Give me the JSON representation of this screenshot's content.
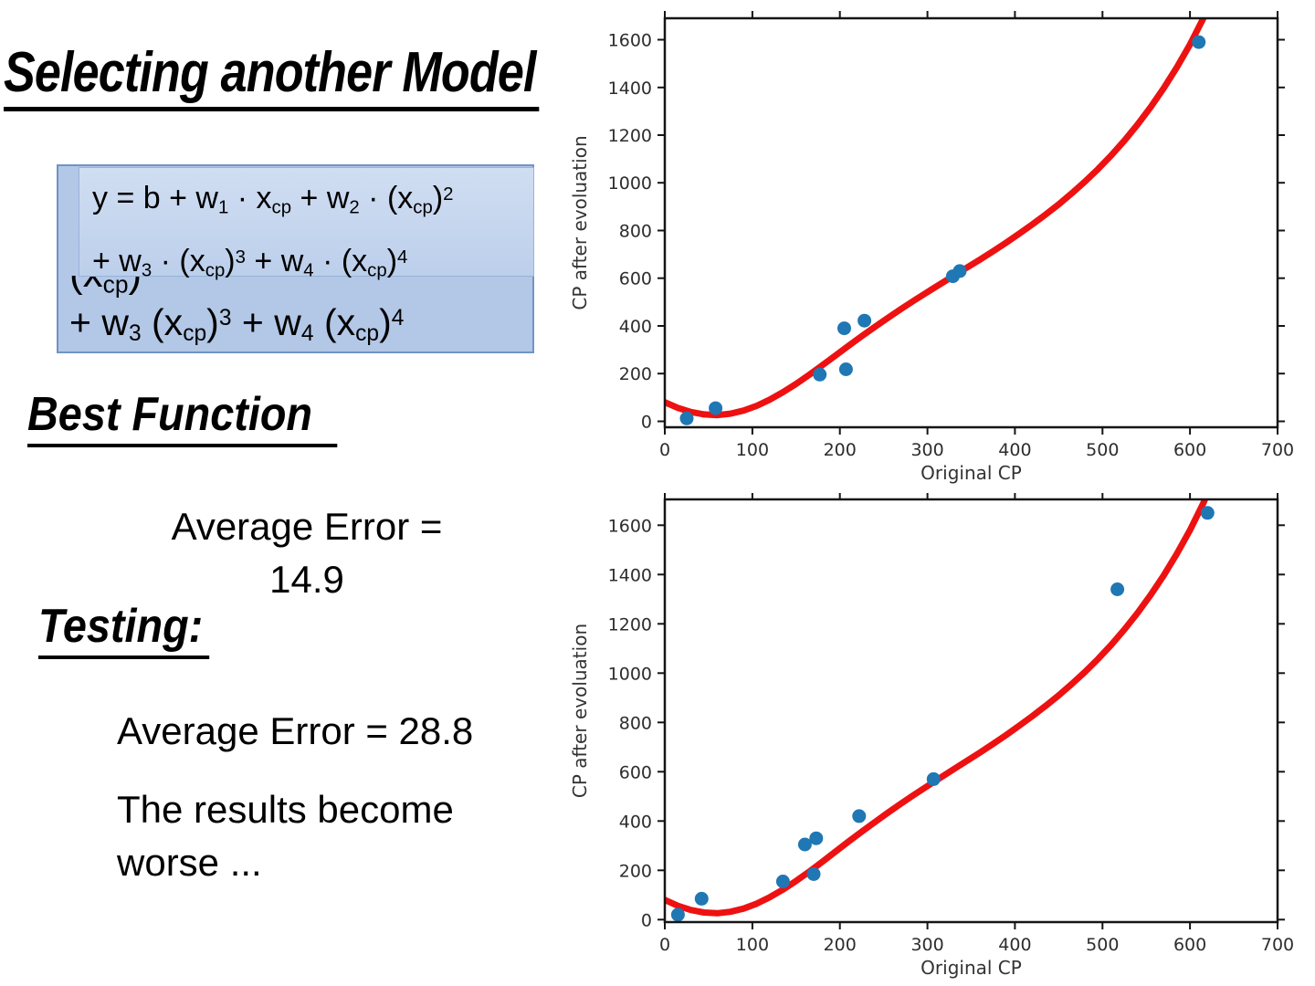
{
  "slide": {
    "title": "Selecting another Model",
    "best_function_heading": "Best Function",
    "testing_heading": "Testing:",
    "avg_error_training_line1": "Average Error =",
    "avg_error_training_line2": "14.9",
    "avg_error_testing": "Average Error = 28.8",
    "note_line1": "The results become",
    "note_line2": "worse ...",
    "formula_box": {
      "inner_line1": [
        {
          "t": "y = b + w"
        },
        {
          "t": "1",
          "m": "sub"
        },
        {
          "t": " · x"
        },
        {
          "t": "cp",
          "m": "sub"
        },
        {
          "t": " + w"
        },
        {
          "t": "2",
          "m": "sub"
        },
        {
          "t": " · (x"
        },
        {
          "t": "cp",
          "m": "sub"
        },
        {
          "t": ")"
        },
        {
          "t": "2",
          "m": "sup"
        }
      ],
      "inner_line2": [
        {
          "t": "+ w"
        },
        {
          "t": "3",
          "m": "sub"
        },
        {
          "t": " · (x"
        },
        {
          "t": "cp",
          "m": "sub"
        },
        {
          "t": ")"
        },
        {
          "t": "3",
          "m": "sup"
        },
        {
          "t": " + w"
        },
        {
          "t": "4",
          "m": "sub"
        },
        {
          "t": " · (x"
        },
        {
          "t": "cp",
          "m": "sub"
        },
        {
          "t": ")"
        },
        {
          "t": "4",
          "m": "sup"
        }
      ],
      "covered_fragment": [
        {
          "t": "(x"
        },
        {
          "t": "cp",
          "m": "sub"
        },
        {
          "t": ")"
        }
      ],
      "outer_line": [
        {
          "t": "+ w"
        },
        {
          "t": "3",
          "m": "sub"
        },
        {
          "t": "  (x"
        },
        {
          "t": "cp",
          "m": "sub"
        },
        {
          "t": ")"
        },
        {
          "t": "3",
          "m": "sup"
        },
        {
          "t": " + w"
        },
        {
          "t": "4",
          "m": "sub"
        },
        {
          "t": "  (x"
        },
        {
          "t": "cp",
          "m": "sub"
        },
        {
          "t": ")"
        },
        {
          "t": "4",
          "m": "sup"
        }
      ],
      "fill_color": "#b3c7e6",
      "inner_fill_color": "#c7d7ef"
    }
  },
  "chart_data": [
    {
      "type": "scatter",
      "title": "",
      "xlabel": "Original CP",
      "ylabel": "CP after evoluation",
      "xlim": [
        0,
        700
      ],
      "ylim": [
        -25,
        1690
      ],
      "xticks": [
        0,
        100,
        200,
        300,
        400,
        500,
        600,
        700
      ],
      "yticks": [
        0,
        200,
        400,
        600,
        800,
        1000,
        1200,
        1400,
        1600
      ],
      "grid": false,
      "legend": null,
      "point_color": "#1f77b4",
      "curve_color": "#ee1111",
      "points": [
        [
          25,
          12
        ],
        [
          58,
          55
        ],
        [
          177,
          196
        ],
        [
          207,
          218
        ],
        [
          205,
          390
        ],
        [
          228,
          422
        ],
        [
          329,
          608
        ],
        [
          337,
          630
        ],
        [
          610,
          1590
        ]
      ],
      "curve": [
        [
          0,
          80
        ],
        [
          15,
          56
        ],
        [
          30,
          39
        ],
        [
          45,
          29
        ],
        [
          60,
          26
        ],
        [
          75,
          32
        ],
        [
          90,
          45
        ],
        [
          105,
          65
        ],
        [
          120,
          91
        ],
        [
          135,
          122
        ],
        [
          150,
          157
        ],
        [
          165,
          195
        ],
        [
          180,
          235
        ],
        [
          195,
          276
        ],
        [
          210,
          317
        ],
        [
          225,
          357
        ],
        [
          240,
          396
        ],
        [
          255,
          434
        ],
        [
          270,
          471
        ],
        [
          285,
          507
        ],
        [
          300,
          542
        ],
        [
          315,
          576
        ],
        [
          330,
          610
        ],
        [
          345,
          644
        ],
        [
          360,
          678
        ],
        [
          375,
          713
        ],
        [
          390,
          749
        ],
        [
          405,
          787
        ],
        [
          420,
          826
        ],
        [
          435,
          867
        ],
        [
          450,
          910
        ],
        [
          465,
          956
        ],
        [
          480,
          1005
        ],
        [
          495,
          1058
        ],
        [
          510,
          1115
        ],
        [
          525,
          1177
        ],
        [
          540,
          1244
        ],
        [
          555,
          1317
        ],
        [
          570,
          1397
        ],
        [
          585,
          1485
        ],
        [
          600,
          1580
        ],
        [
          615,
          1688
        ],
        [
          625,
          1770
        ]
      ]
    },
    {
      "type": "scatter",
      "title": "",
      "xlabel": "Original CP",
      "ylabel": "CP after evoluation",
      "xlim": [
        0,
        700
      ],
      "ylim": [
        -10,
        1705
      ],
      "xticks": [
        0,
        100,
        200,
        300,
        400,
        500,
        600,
        700
      ],
      "yticks": [
        0,
        200,
        400,
        600,
        800,
        1000,
        1200,
        1400,
        1600
      ],
      "grid": false,
      "legend": null,
      "point_color": "#1f77b4",
      "curve_color": "#ee1111",
      "points": [
        [
          15,
          20
        ],
        [
          42,
          85
        ],
        [
          135,
          155
        ],
        [
          170,
          185
        ],
        [
          160,
          305
        ],
        [
          173,
          330
        ],
        [
          222,
          420
        ],
        [
          307,
          570
        ],
        [
          517,
          1340
        ],
        [
          620,
          1650
        ]
      ],
      "curve": [
        [
          0,
          80
        ],
        [
          15,
          56
        ],
        [
          30,
          39
        ],
        [
          45,
          29
        ],
        [
          60,
          26
        ],
        [
          75,
          32
        ],
        [
          90,
          45
        ],
        [
          105,
          65
        ],
        [
          120,
          91
        ],
        [
          135,
          122
        ],
        [
          150,
          157
        ],
        [
          165,
          195
        ],
        [
          180,
          235
        ],
        [
          195,
          276
        ],
        [
          210,
          317
        ],
        [
          225,
          357
        ],
        [
          240,
          396
        ],
        [
          255,
          434
        ],
        [
          270,
          471
        ],
        [
          285,
          507
        ],
        [
          300,
          542
        ],
        [
          315,
          576
        ],
        [
          330,
          610
        ],
        [
          345,
          644
        ],
        [
          360,
          678
        ],
        [
          375,
          713
        ],
        [
          390,
          749
        ],
        [
          405,
          787
        ],
        [
          420,
          826
        ],
        [
          435,
          867
        ],
        [
          450,
          910
        ],
        [
          465,
          956
        ],
        [
          480,
          1005
        ],
        [
          495,
          1058
        ],
        [
          510,
          1115
        ],
        [
          525,
          1177
        ],
        [
          540,
          1244
        ],
        [
          555,
          1317
        ],
        [
          570,
          1397
        ],
        [
          585,
          1485
        ],
        [
          600,
          1580
        ],
        [
          615,
          1688
        ],
        [
          625,
          1770
        ]
      ]
    }
  ]
}
